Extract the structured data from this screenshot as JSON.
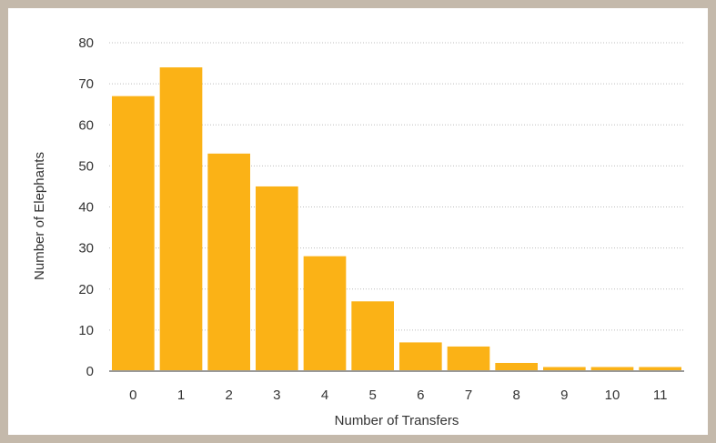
{
  "chart_data": {
    "type": "bar",
    "title": "",
    "xlabel": "Number of Transfers",
    "ylabel": "Number of Elephants",
    "categories": [
      "0",
      "1",
      "2",
      "3",
      "4",
      "5",
      "6",
      "7",
      "8",
      "9",
      "10",
      "11"
    ],
    "values": [
      67,
      74,
      53,
      45,
      28,
      17,
      7,
      6,
      2,
      1,
      1,
      1
    ],
    "ylim": [
      0,
      80
    ],
    "yticks": [
      "0",
      "10",
      "20",
      "30",
      "40",
      "50",
      "60",
      "70",
      "80"
    ],
    "grid": true,
    "legend": "none",
    "colors": {
      "bar": "#fbb216",
      "grid": "#bdbdbd",
      "axis": "#9a9a9a",
      "frame": "#c4b9ab"
    }
  }
}
